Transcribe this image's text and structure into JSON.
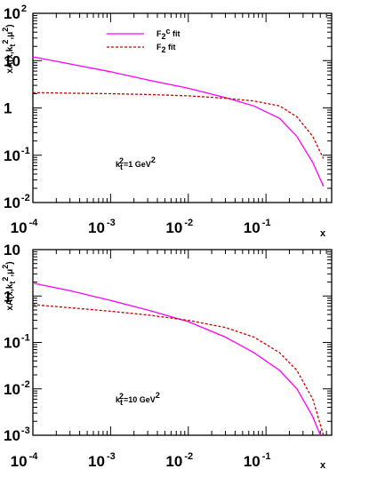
{
  "chart_data": [
    {
      "type": "line",
      "panel": "top",
      "xscale": "log",
      "yscale": "log",
      "xlim": [
        0.0001,
        0.7
      ],
      "ylim": [
        0.01,
        100
      ],
      "xlabel": "x",
      "ylabel": "xA(x,k_t^2,μ^2)",
      "x_ticks": [
        {
          "base": "10",
          "exp": "-4"
        },
        {
          "base": "10",
          "exp": "-3"
        },
        {
          "base": "10",
          "exp": "-2"
        },
        {
          "base": "10",
          "exp": "-1"
        }
      ],
      "y_ticks": [
        {
          "base": "10",
          "exp": "2"
        },
        {
          "base": "10",
          "exp": ""
        },
        {
          "base": "1",
          "exp": ""
        },
        {
          "base": "10",
          "exp": "-1"
        },
        {
          "base": "10",
          "exp": "-2"
        }
      ],
      "annotation": {
        "k": "k",
        "sub": "t",
        "sup": "2",
        "rest": "=1 GeV",
        "unit_sup": "2"
      },
      "legend_position": "top-center",
      "series": [
        {
          "name_main": "F",
          "name_sub": "2",
          "name_sup": "c",
          "name_rest": " fit",
          "style": "solid",
          "color": "#ff00ff",
          "x": [
            0.0001,
            0.0003,
            0.001,
            0.003,
            0.01,
            0.03,
            0.07,
            0.15,
            0.25,
            0.4,
            0.55
          ],
          "y": [
            12,
            8.5,
            5.8,
            3.9,
            2.6,
            1.65,
            1.1,
            0.6,
            0.25,
            0.07,
            0.022
          ]
        },
        {
          "name_main": "F",
          "name_sub": "2",
          "name_sup": "",
          "name_rest": " fit",
          "style": "dashed",
          "color": "#cc0000",
          "x": [
            0.0001,
            0.0003,
            0.001,
            0.003,
            0.01,
            0.03,
            0.07,
            0.15,
            0.25,
            0.4,
            0.55
          ],
          "y": [
            2.1,
            2.05,
            2.0,
            1.92,
            1.8,
            1.6,
            1.4,
            1.1,
            0.65,
            0.25,
            0.085
          ]
        }
      ]
    },
    {
      "type": "line",
      "panel": "bottom",
      "xscale": "log",
      "yscale": "log",
      "xlim": [
        0.0001,
        0.7
      ],
      "ylim": [
        0.001,
        10
      ],
      "xlabel": "x",
      "ylabel": "xA(x,k_t^2,μ^2)",
      "x_ticks": [
        {
          "base": "10",
          "exp": "-4"
        },
        {
          "base": "10",
          "exp": "-3"
        },
        {
          "base": "10",
          "exp": "-2"
        },
        {
          "base": "10",
          "exp": "-1"
        }
      ],
      "y_ticks": [
        {
          "base": "10",
          "exp": ""
        },
        {
          "base": "1",
          "exp": ""
        },
        {
          "base": "10",
          "exp": "-1"
        },
        {
          "base": "10",
          "exp": "-2"
        },
        {
          "base": "10",
          "exp": "-3"
        }
      ],
      "annotation": {
        "k": "k",
        "sub": "t",
        "sup": "2",
        "rest": "=10 GeV",
        "unit_sup": "2"
      },
      "series": [
        {
          "name_main": "F",
          "name_sub": "2",
          "name_sup": "c",
          "name_rest": " fit",
          "style": "solid",
          "color": "#ff00ff",
          "x": [
            0.0001,
            0.0003,
            0.001,
            0.003,
            0.01,
            0.03,
            0.07,
            0.15,
            0.25,
            0.4,
            0.5
          ],
          "y": [
            1.9,
            1.3,
            0.8,
            0.5,
            0.28,
            0.13,
            0.06,
            0.025,
            0.01,
            0.0025,
            0.001
          ]
        },
        {
          "name_main": "F",
          "name_sub": "2",
          "name_sup": "",
          "name_rest": " fit",
          "style": "dashed",
          "color": "#cc0000",
          "x": [
            0.0001,
            0.0003,
            0.001,
            0.003,
            0.01,
            0.03,
            0.07,
            0.15,
            0.25,
            0.4,
            0.55
          ],
          "y": [
            0.65,
            0.56,
            0.47,
            0.39,
            0.3,
            0.21,
            0.13,
            0.06,
            0.025,
            0.006,
            0.001
          ]
        }
      ]
    }
  ]
}
